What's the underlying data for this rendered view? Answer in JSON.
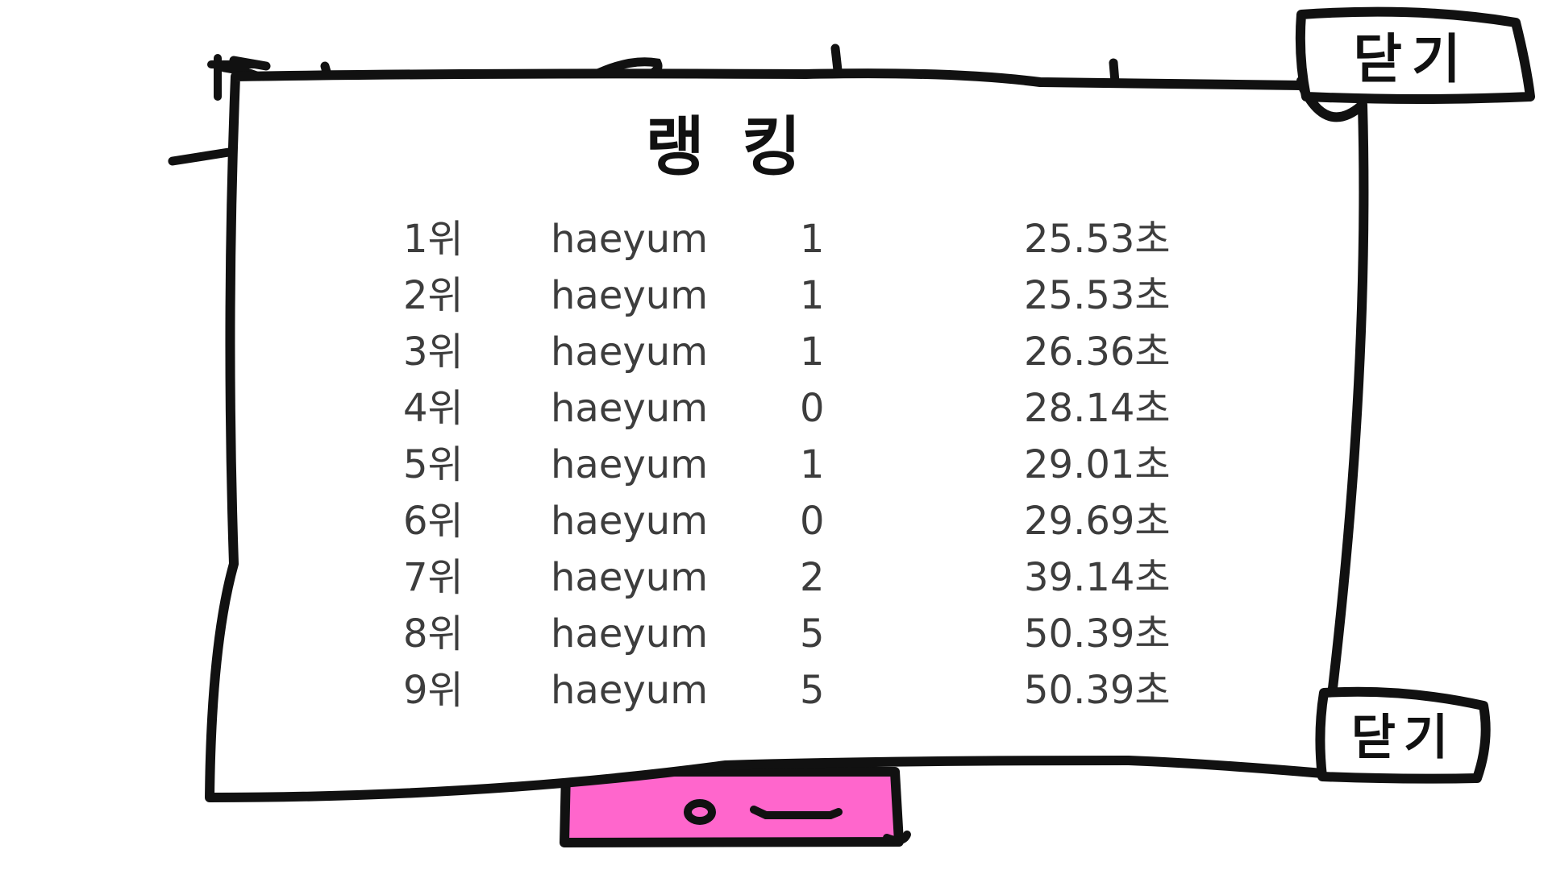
{
  "ranking": {
    "title": "랭킹",
    "rows": [
      {
        "rank": "1위",
        "name": "haeyum",
        "score": "1",
        "time": "25.53초"
      },
      {
        "rank": "2위",
        "name": "haeyum",
        "score": "1",
        "time": "25.53초"
      },
      {
        "rank": "3위",
        "name": "haeyum",
        "score": "1",
        "time": "26.36초"
      },
      {
        "rank": "4위",
        "name": "haeyum",
        "score": "0",
        "time": "28.14초"
      },
      {
        "rank": "5위",
        "name": "haeyum",
        "score": "1",
        "time": "29.01초"
      },
      {
        "rank": "6위",
        "name": "haeyum",
        "score": "0",
        "time": "29.69초"
      },
      {
        "rank": "7위",
        "name": "haeyum",
        "score": "2",
        "time": "39.14초"
      },
      {
        "rank": "8위",
        "name": "haeyum",
        "score": "5",
        "time": "50.39초"
      },
      {
        "rank": "9위",
        "name": "haeyum",
        "score": "5",
        "time": "50.39초"
      }
    ]
  },
  "buttons": {
    "close_top_label": "닫기",
    "close_bottom_label": "닫기"
  },
  "colors": {
    "ink": "#111111",
    "text": "#3d3d3d",
    "pink_button": "#ff66cc",
    "panel": "#ffffff"
  }
}
